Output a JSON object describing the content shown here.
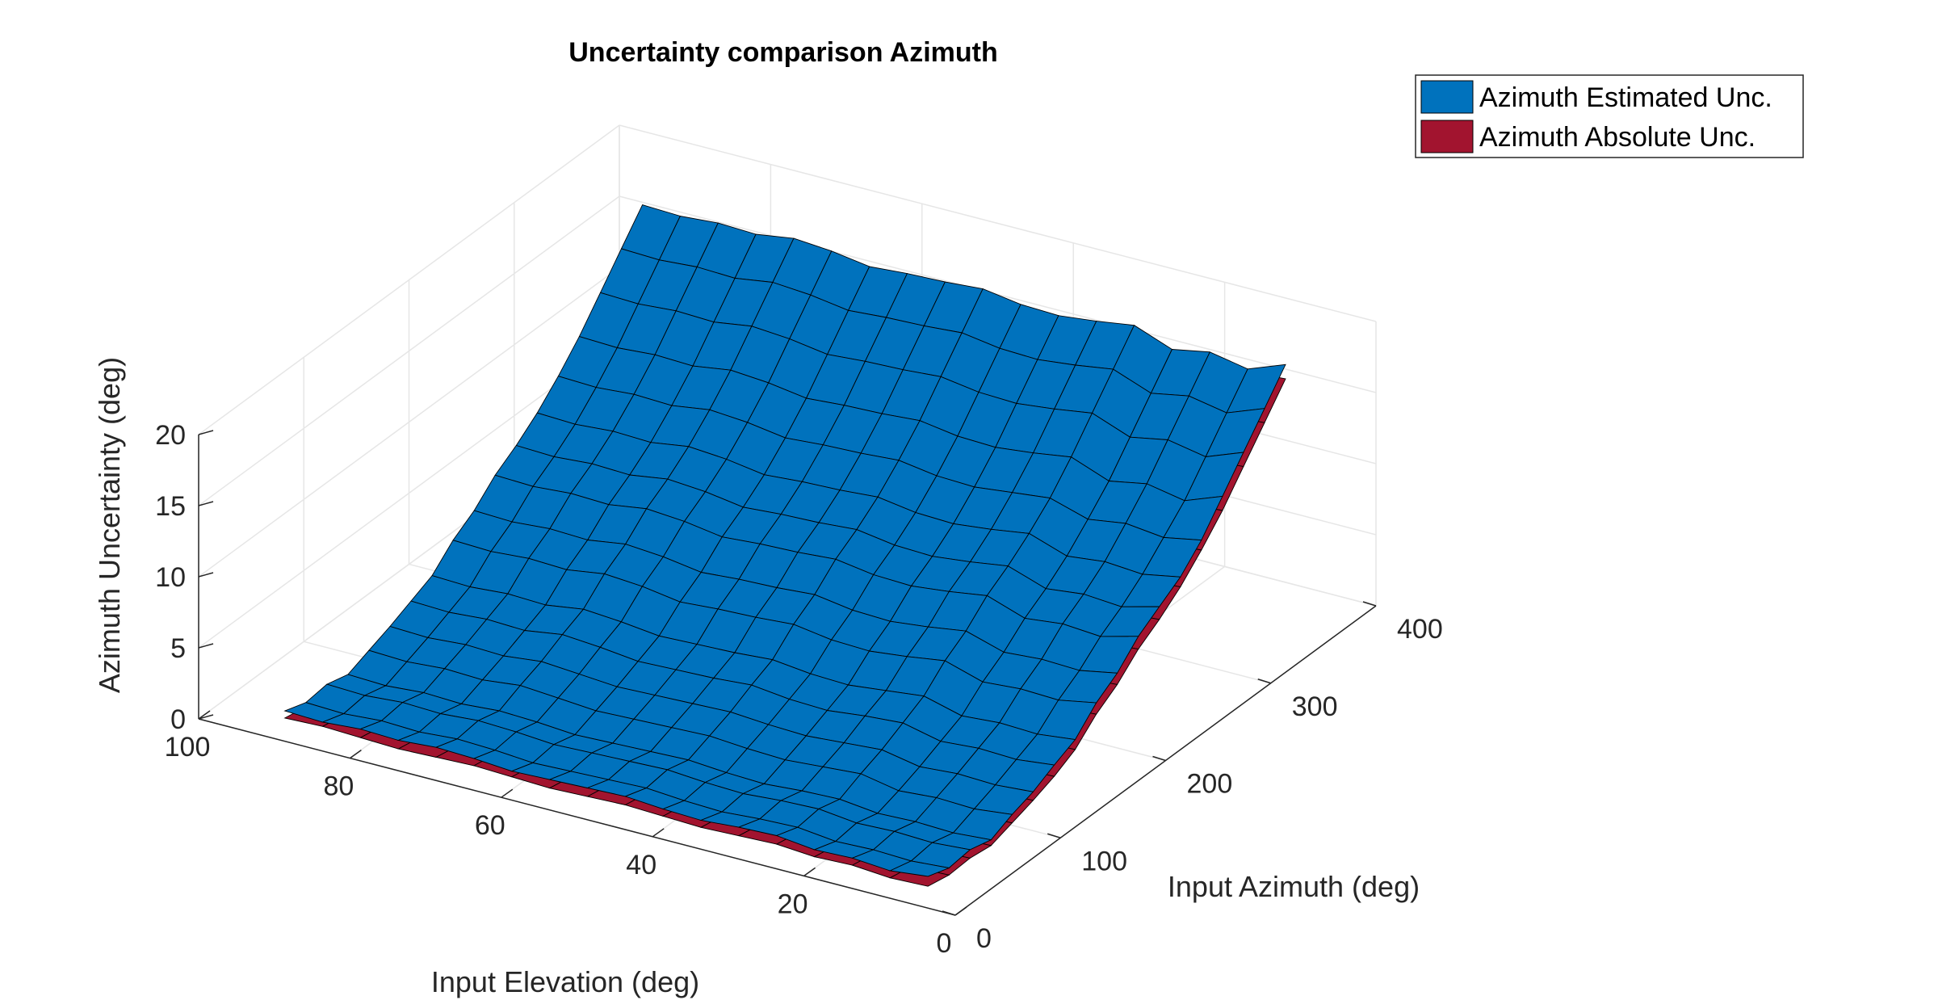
{
  "chart_data": {
    "type": "surface3d",
    "title": "Uncertainty comparison Azimuth",
    "xlabel": "Input Elevation (deg)",
    "ylabel": "Input Azimuth (deg)",
    "zlabel": "Azimuth  Uncertainty (deg)",
    "x_ticks": [
      0,
      20,
      40,
      60,
      80,
      100
    ],
    "y_ticks": [
      0,
      100,
      200,
      300,
      400
    ],
    "z_ticks": [
      0,
      5,
      10,
      15,
      20
    ],
    "xlim": [
      0,
      100
    ],
    "ylim": [
      0,
      400
    ],
    "zlim": [
      0,
      20
    ],
    "grid": true,
    "legend_position": "top-right",
    "series": [
      {
        "name": "Azimuth Estimated Unc.",
        "color": "#0072BD",
        "elevation": [
          5,
          10,
          15,
          20,
          25,
          30,
          35,
          40,
          45,
          50,
          55,
          60,
          65,
          70,
          75,
          80,
          85,
          90
        ],
        "azimuth": [
          10,
          30,
          50,
          70,
          90,
          110,
          130,
          150,
          170,
          190,
          210,
          230,
          250,
          270,
          290,
          310,
          330,
          350
        ],
        "values": [
          [
            1.5,
            1.0,
            1.2,
            0.8,
            1.5,
            2.0,
            2.8,
            3.5,
            5.0,
            6.0,
            7.5,
            8.5,
            9.5,
            11.0,
            13.0,
            15.0,
            17.0,
            19.0
          ],
          [
            1.2,
            0.8,
            1.0,
            0.6,
            1.2,
            1.8,
            2.5,
            3.2,
            4.5,
            5.5,
            6.8,
            7.8,
            9.0,
            10.5,
            12.0,
            14.0,
            16.0,
            18.0
          ],
          [
            1.4,
            0.9,
            1.1,
            0.7,
            1.3,
            1.9,
            2.6,
            3.3,
            4.6,
            5.6,
            7.0,
            8.0,
            9.2,
            10.8,
            12.5,
            14.5,
            16.5,
            18.5
          ],
          [
            1.3,
            0.8,
            1.0,
            0.6,
            1.1,
            1.7,
            2.4,
            3.1,
            4.4,
            5.4,
            6.7,
            7.7,
            8.9,
            10.4,
            12.0,
            14.0,
            16.0,
            18.0
          ],
          [
            1.6,
            1.1,
            1.3,
            0.9,
            1.6,
            2.2,
            3.0,
            3.8,
            5.2,
            6.2,
            7.6,
            8.6,
            9.8,
            11.2,
            13.0,
            15.0,
            17.0,
            19.0
          ],
          [
            1.5,
            1.0,
            1.2,
            0.8,
            1.4,
            2.0,
            2.8,
            3.5,
            4.8,
            5.8,
            7.2,
            8.2,
            9.4,
            10.9,
            12.6,
            14.6,
            16.6,
            18.6
          ],
          [
            1.3,
            0.8,
            1.0,
            0.6,
            1.2,
            1.8,
            2.5,
            3.2,
            4.5,
            5.5,
            6.9,
            7.9,
            9.1,
            10.6,
            12.3,
            14.3,
            16.3,
            18.3
          ],
          [
            1.4,
            0.9,
            1.1,
            0.7,
            1.3,
            1.9,
            2.6,
            3.3,
            4.6,
            5.6,
            7.0,
            8.0,
            9.2,
            10.7,
            12.4,
            14.4,
            16.4,
            18.4
          ],
          [
            1.6,
            1.1,
            1.3,
            0.9,
            1.5,
            2.1,
            2.9,
            3.6,
            5.0,
            6.0,
            7.4,
            8.4,
            9.6,
            11.1,
            12.8,
            14.8,
            16.8,
            18.8
          ],
          [
            1.5,
            1.0,
            1.2,
            0.8,
            1.4,
            2.0,
            2.7,
            3.4,
            4.8,
            5.8,
            7.2,
            8.2,
            9.4,
            10.9,
            12.6,
            14.6,
            16.6,
            18.6
          ],
          [
            1.4,
            0.9,
            1.1,
            0.7,
            1.3,
            1.9,
            2.6,
            3.3,
            4.7,
            5.7,
            7.1,
            8.1,
            9.3,
            10.8,
            12.5,
            14.5,
            16.5,
            18.5
          ],
          [
            1.3,
            0.8,
            1.0,
            0.6,
            1.2,
            1.8,
            2.5,
            3.2,
            4.5,
            5.5,
            6.9,
            7.9,
            9.1,
            10.6,
            12.3,
            14.3,
            16.3,
            18.3
          ],
          [
            1.5,
            1.0,
            1.2,
            0.8,
            1.4,
            2.0,
            2.8,
            3.5,
            4.9,
            5.9,
            7.3,
            8.3,
            9.5,
            11.0,
            12.7,
            14.7,
            16.7,
            18.7
          ],
          [
            1.6,
            1.1,
            1.3,
            0.9,
            1.6,
            2.2,
            3.0,
            3.7,
            5.1,
            6.1,
            7.5,
            8.5,
            9.7,
            11.2,
            12.9,
            14.9,
            16.9,
            18.9
          ],
          [
            1.4,
            0.9,
            1.1,
            0.7,
            1.3,
            1.9,
            2.6,
            3.3,
            4.7,
            5.7,
            7.1,
            8.1,
            9.3,
            10.8,
            12.5,
            14.5,
            16.5,
            18.5
          ],
          [
            1.5,
            1.0,
            1.2,
            0.8,
            1.4,
            2.0,
            2.7,
            3.4,
            4.8,
            5.8,
            7.2,
            8.2,
            9.4,
            10.9,
            12.6,
            14.6,
            16.6,
            18.6
          ],
          [
            1.3,
            0.8,
            1.0,
            0.6,
            1.2,
            1.8,
            2.5,
            3.2,
            4.6,
            5.6,
            7.0,
            8.0,
            9.2,
            10.7,
            12.4,
            14.4,
            16.4,
            18.4
          ],
          [
            1.4,
            0.9,
            1.1,
            0.7,
            1.3,
            1.9,
            2.6,
            3.3,
            4.7,
            5.7,
            7.1,
            8.1,
            9.3,
            10.8,
            12.5,
            14.5,
            16.5,
            18.5
          ]
        ]
      },
      {
        "name": "Azimuth Absolute Unc.",
        "color": "#A2142F",
        "elevation": [
          5,
          10,
          15,
          20,
          25,
          30,
          35,
          40,
          45,
          50,
          55,
          60,
          65,
          70,
          75,
          80,
          85,
          90
        ],
        "azimuth": [
          10,
          30,
          50,
          70,
          90,
          110,
          130,
          150,
          170,
          190,
          210,
          230,
          250,
          270,
          290,
          310,
          330,
          350
        ],
        "values": [
          [
            0.8,
            0.5,
            0.6,
            0.4,
            0.9,
            1.4,
            2.0,
            2.8,
            4.2,
            5.2,
            6.6,
            7.6,
            8.8,
            10.3,
            12.0,
            14.0,
            16.0,
            18.0
          ],
          [
            0.7,
            0.4,
            0.5,
            0.3,
            0.8,
            1.3,
            1.9,
            2.7,
            4.0,
            5.0,
            6.4,
            7.4,
            8.6,
            10.1,
            11.8,
            13.8,
            15.8,
            17.8
          ],
          [
            0.9,
            0.6,
            0.7,
            0.5,
            1.0,
            1.5,
            2.1,
            2.9,
            4.3,
            5.3,
            6.7,
            7.7,
            8.9,
            10.4,
            12.1,
            14.1,
            16.1,
            18.1
          ],
          [
            0.8,
            0.5,
            0.6,
            0.4,
            0.9,
            1.4,
            2.0,
            2.8,
            4.2,
            5.2,
            6.6,
            7.6,
            8.8,
            10.3,
            12.0,
            14.0,
            16.0,
            18.0
          ],
          [
            1.0,
            0.7,
            0.8,
            0.6,
            1.1,
            1.6,
            2.2,
            3.0,
            4.4,
            5.4,
            6.8,
            7.8,
            9.0,
            10.5,
            12.2,
            14.2,
            16.2,
            18.2
          ],
          [
            0.9,
            0.6,
            0.7,
            0.5,
            1.0,
            1.5,
            2.1,
            2.9,
            4.3,
            5.3,
            6.7,
            7.7,
            8.9,
            10.4,
            12.1,
            14.1,
            16.1,
            18.1
          ],
          [
            0.8,
            0.5,
            0.6,
            0.4,
            0.9,
            1.4,
            2.0,
            2.8,
            4.2,
            5.2,
            6.6,
            7.6,
            8.8,
            10.3,
            12.0,
            14.0,
            16.0,
            18.0
          ],
          [
            0.9,
            0.6,
            0.7,
            0.5,
            1.0,
            1.5,
            2.1,
            2.9,
            4.3,
            5.3,
            6.7,
            7.7,
            8.9,
            10.4,
            12.1,
            14.1,
            16.1,
            18.1
          ],
          [
            1.0,
            0.7,
            0.8,
            0.6,
            1.1,
            1.6,
            2.2,
            3.0,
            4.4,
            5.4,
            6.8,
            7.8,
            9.0,
            10.5,
            12.2,
            14.2,
            16.2,
            18.2
          ],
          [
            0.9,
            0.6,
            0.7,
            0.5,
            1.0,
            1.5,
            2.1,
            2.9,
            4.3,
            5.3,
            6.7,
            7.7,
            8.9,
            10.4,
            12.1,
            14.1,
            16.1,
            18.1
          ],
          [
            0.8,
            0.5,
            0.6,
            0.4,
            0.9,
            1.4,
            2.0,
            2.8,
            4.2,
            5.2,
            6.6,
            7.6,
            8.8,
            10.3,
            12.0,
            14.0,
            16.0,
            18.0
          ],
          [
            0.9,
            0.6,
            0.7,
            0.5,
            1.0,
            1.5,
            2.1,
            2.9,
            4.3,
            5.3,
            6.7,
            7.7,
            8.9,
            10.4,
            12.1,
            14.1,
            16.1,
            18.1
          ],
          [
            1.0,
            0.7,
            0.8,
            0.6,
            1.1,
            1.6,
            2.2,
            3.0,
            4.4,
            5.4,
            6.8,
            7.8,
            9.0,
            10.5,
            12.2,
            14.2,
            16.2,
            18.2
          ],
          [
            0.9,
            0.6,
            0.7,
            0.5,
            1.0,
            1.5,
            2.1,
            2.9,
            4.3,
            5.3,
            6.7,
            7.7,
            8.9,
            10.4,
            12.1,
            14.1,
            16.1,
            18.1
          ],
          [
            0.8,
            0.5,
            0.6,
            0.4,
            0.9,
            1.4,
            2.0,
            2.8,
            4.2,
            5.2,
            6.6,
            7.6,
            8.8,
            10.3,
            12.0,
            14.0,
            16.0,
            18.0
          ],
          [
            0.9,
            0.6,
            0.7,
            0.5,
            1.0,
            1.5,
            2.1,
            2.9,
            4.3,
            5.3,
            6.7,
            7.7,
            8.9,
            10.4,
            12.1,
            14.1,
            16.1,
            18.1
          ],
          [
            1.0,
            0.7,
            0.8,
            0.6,
            1.1,
            1.6,
            2.2,
            3.0,
            4.4,
            5.4,
            6.8,
            7.8,
            9.0,
            10.5,
            12.2,
            14.2,
            16.2,
            18.2
          ],
          [
            0.9,
            0.6,
            0.7,
            0.5,
            1.0,
            1.5,
            2.1,
            2.9,
            4.3,
            5.3,
            6.7,
            7.7,
            8.9,
            10.4,
            12.1,
            14.1,
            16.1,
            18.1
          ]
        ]
      }
    ]
  }
}
